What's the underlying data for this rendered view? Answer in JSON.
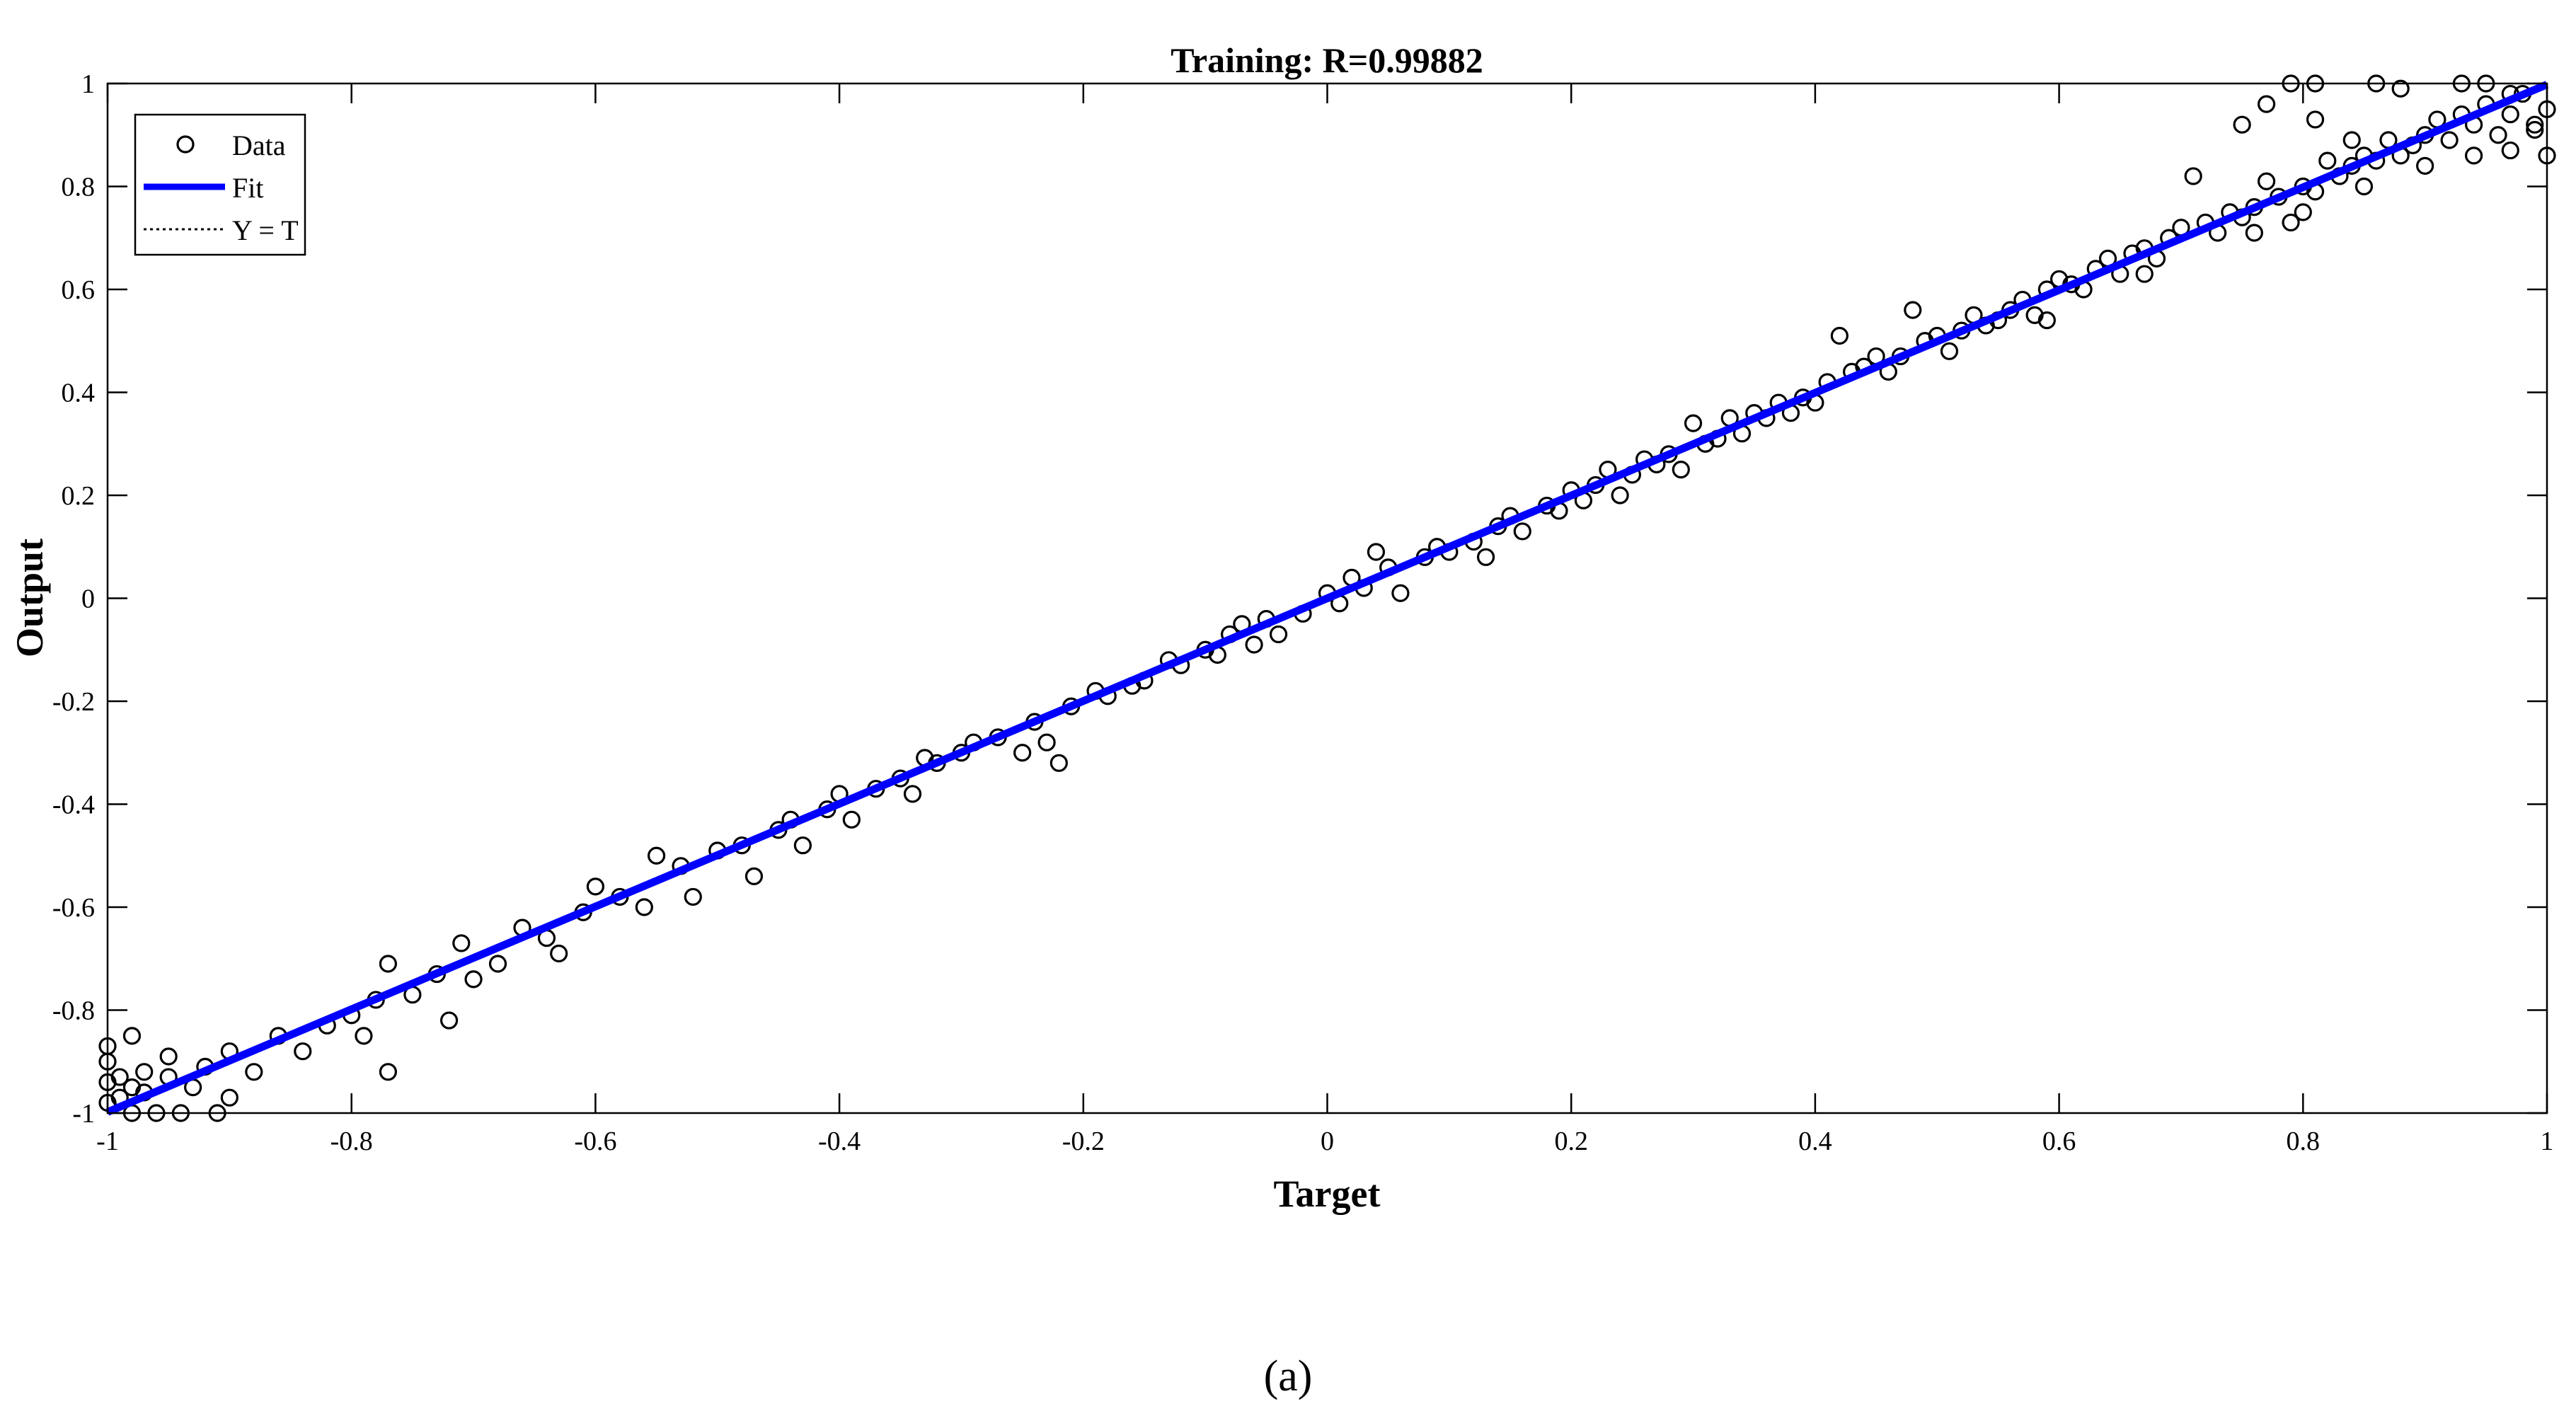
{
  "chart_data": {
    "type": "scatter",
    "title": "Training: R=0.99882",
    "xlabel": "Target",
    "ylabel": "Output",
    "xlim": [
      -1,
      1
    ],
    "ylim": [
      -1,
      1
    ],
    "xticks": [
      "-1",
      "-0.8",
      "-0.6",
      "-0.4",
      "-0.2",
      "0",
      "0.2",
      "0.4",
      "0.6",
      "0.8",
      "1"
    ],
    "yticks": [
      "-1",
      "-0.8",
      "-0.6",
      "-0.4",
      "-0.2",
      "0",
      "0.2",
      "0.4",
      "0.6",
      "0.8",
      "1"
    ],
    "grid": false,
    "legend_position": "top-left",
    "series": [
      {
        "name": "Data",
        "kind": "points",
        "marker": "circle",
        "color": "#000000",
        "points": [
          [
            -1.0,
            -0.98
          ],
          [
            -1.0,
            -0.94
          ],
          [
            -1.0,
            -0.9
          ],
          [
            -1.0,
            -0.87
          ],
          [
            -0.99,
            -0.97
          ],
          [
            -0.99,
            -0.93
          ],
          [
            -0.98,
            -1.0
          ],
          [
            -0.98,
            -0.95
          ],
          [
            -0.98,
            -0.85
          ],
          [
            -0.97,
            -0.96
          ],
          [
            -0.97,
            -0.92
          ],
          [
            -0.96,
            -1.0
          ],
          [
            -0.95,
            -0.93
          ],
          [
            -0.95,
            -0.89
          ],
          [
            -0.94,
            -1.0
          ],
          [
            -0.93,
            -0.95
          ],
          [
            -0.92,
            -0.91
          ],
          [
            -0.91,
            -1.0
          ],
          [
            -0.9,
            -0.97
          ],
          [
            -0.9,
            -0.88
          ],
          [
            -0.88,
            -0.92
          ],
          [
            -0.86,
            -0.85
          ],
          [
            -0.84,
            -0.88
          ],
          [
            -0.82,
            -0.83
          ],
          [
            -0.8,
            -0.81
          ],
          [
            -0.79,
            -0.85
          ],
          [
            -0.78,
            -0.78
          ],
          [
            -0.77,
            -0.92
          ],
          [
            -0.77,
            -0.71
          ],
          [
            -0.75,
            -0.77
          ],
          [
            -0.73,
            -0.73
          ],
          [
            -0.72,
            -0.82
          ],
          [
            -0.71,
            -0.67
          ],
          [
            -0.7,
            -0.74
          ],
          [
            -0.68,
            -0.71
          ],
          [
            -0.66,
            -0.64
          ],
          [
            -0.64,
            -0.66
          ],
          [
            -0.63,
            -0.69
          ],
          [
            -0.61,
            -0.61
          ],
          [
            -0.6,
            -0.56
          ],
          [
            -0.58,
            -0.58
          ],
          [
            -0.56,
            -0.6
          ],
          [
            -0.55,
            -0.5
          ],
          [
            -0.53,
            -0.52
          ],
          [
            -0.52,
            -0.58
          ],
          [
            -0.5,
            -0.49
          ],
          [
            -0.48,
            -0.48
          ],
          [
            -0.47,
            -0.54
          ],
          [
            -0.45,
            -0.45
          ],
          [
            -0.44,
            -0.43
          ],
          [
            -0.43,
            -0.48
          ],
          [
            -0.41,
            -0.41
          ],
          [
            -0.4,
            -0.38
          ],
          [
            -0.39,
            -0.43
          ],
          [
            -0.37,
            -0.37
          ],
          [
            -0.35,
            -0.35
          ],
          [
            -0.34,
            -0.38
          ],
          [
            -0.33,
            -0.31
          ],
          [
            -0.32,
            -0.32
          ],
          [
            -0.3,
            -0.3
          ],
          [
            -0.29,
            -0.28
          ],
          [
            -0.27,
            -0.27
          ],
          [
            -0.25,
            -0.3
          ],
          [
            -0.24,
            -0.24
          ],
          [
            -0.23,
            -0.28
          ],
          [
            -0.22,
            -0.32
          ],
          [
            -0.21,
            -0.21
          ],
          [
            -0.19,
            -0.18
          ],
          [
            -0.18,
            -0.19
          ],
          [
            -0.16,
            -0.17
          ],
          [
            -0.15,
            -0.16
          ],
          [
            -0.13,
            -0.12
          ],
          [
            -0.12,
            -0.13
          ],
          [
            -0.1,
            -0.1
          ],
          [
            -0.09,
            -0.11
          ],
          [
            -0.08,
            -0.07
          ],
          [
            -0.07,
            -0.05
          ],
          [
            -0.06,
            -0.09
          ],
          [
            -0.05,
            -0.04
          ],
          [
            -0.04,
            -0.07
          ],
          [
            -0.02,
            -0.03
          ],
          [
            0.0,
            0.01
          ],
          [
            0.01,
            -0.01
          ],
          [
            0.02,
            0.04
          ],
          [
            0.03,
            0.02
          ],
          [
            0.04,
            0.09
          ],
          [
            0.05,
            0.06
          ],
          [
            0.06,
            0.01
          ],
          [
            0.08,
            0.08
          ],
          [
            0.09,
            0.1
          ],
          [
            0.1,
            0.09
          ],
          [
            0.12,
            0.11
          ],
          [
            0.13,
            0.08
          ],
          [
            0.14,
            0.14
          ],
          [
            0.15,
            0.16
          ],
          [
            0.16,
            0.13
          ],
          [
            0.18,
            0.18
          ],
          [
            0.19,
            0.17
          ],
          [
            0.2,
            0.21
          ],
          [
            0.21,
            0.19
          ],
          [
            0.22,
            0.22
          ],
          [
            0.23,
            0.25
          ],
          [
            0.24,
            0.2
          ],
          [
            0.25,
            0.24
          ],
          [
            0.26,
            0.27
          ],
          [
            0.27,
            0.26
          ],
          [
            0.28,
            0.28
          ],
          [
            0.29,
            0.25
          ],
          [
            0.3,
            0.34
          ],
          [
            0.31,
            0.3
          ],
          [
            0.32,
            0.31
          ],
          [
            0.33,
            0.35
          ],
          [
            0.34,
            0.32
          ],
          [
            0.35,
            0.36
          ],
          [
            0.36,
            0.35
          ],
          [
            0.37,
            0.38
          ],
          [
            0.38,
            0.36
          ],
          [
            0.39,
            0.39
          ],
          [
            0.4,
            0.38
          ],
          [
            0.41,
            0.42
          ],
          [
            0.42,
            0.51
          ],
          [
            0.43,
            0.44
          ],
          [
            0.44,
            0.45
          ],
          [
            0.45,
            0.47
          ],
          [
            0.46,
            0.44
          ],
          [
            0.47,
            0.47
          ],
          [
            0.48,
            0.56
          ],
          [
            0.49,
            0.5
          ],
          [
            0.5,
            0.51
          ],
          [
            0.51,
            0.48
          ],
          [
            0.52,
            0.52
          ],
          [
            0.53,
            0.55
          ],
          [
            0.54,
            0.53
          ],
          [
            0.55,
            0.54
          ],
          [
            0.56,
            0.56
          ],
          [
            0.57,
            0.58
          ],
          [
            0.58,
            0.55
          ],
          [
            0.59,
            0.6
          ],
          [
            0.6,
            0.62
          ],
          [
            0.61,
            0.61
          ],
          [
            0.62,
            0.6
          ],
          [
            0.63,
            0.64
          ],
          [
            0.64,
            0.66
          ],
          [
            0.65,
            0.63
          ],
          [
            0.66,
            0.67
          ],
          [
            0.67,
            0.68
          ],
          [
            0.68,
            0.66
          ],
          [
            0.69,
            0.7
          ],
          [
            0.7,
            0.72
          ],
          [
            0.71,
            0.82
          ],
          [
            0.72,
            0.73
          ],
          [
            0.73,
            0.71
          ],
          [
            0.74,
            0.75
          ],
          [
            0.75,
            0.74
          ],
          [
            0.76,
            0.76
          ],
          [
            0.77,
            0.81
          ],
          [
            0.78,
            0.78
          ],
          [
            0.79,
            0.73
          ],
          [
            0.8,
            0.8
          ],
          [
            0.81,
            0.79
          ],
          [
            0.82,
            0.85
          ],
          [
            0.83,
            0.82
          ],
          [
            0.84,
            0.84
          ],
          [
            0.85,
            0.86
          ],
          [
            0.86,
            0.85
          ],
          [
            0.87,
            0.89
          ],
          [
            0.88,
            0.86
          ],
          [
            0.89,
            0.88
          ],
          [
            0.9,
            0.9
          ],
          [
            0.91,
            0.93
          ],
          [
            0.92,
            0.89
          ],
          [
            0.93,
            0.94
          ],
          [
            0.94,
            0.92
          ],
          [
            0.95,
            0.96
          ],
          [
            0.96,
            0.9
          ],
          [
            0.97,
            0.94
          ],
          [
            0.98,
            0.98
          ],
          [
            0.99,
            0.92
          ],
          [
            1.0,
            0.95
          ],
          [
            1.0,
            0.86
          ],
          [
            0.75,
            0.92
          ],
          [
            0.77,
            0.96
          ],
          [
            0.79,
            1.0
          ],
          [
            0.81,
            1.0
          ],
          [
            0.81,
            0.93
          ],
          [
            0.84,
            0.89
          ],
          [
            0.86,
            1.0
          ],
          [
            0.88,
            0.99
          ],
          [
            0.93,
            1.0
          ],
          [
            0.95,
            1.0
          ],
          [
            0.97,
            0.98
          ],
          [
            0.99,
            0.91
          ],
          [
            0.94,
            0.86
          ],
          [
            0.97,
            0.87
          ],
          [
            0.9,
            0.84
          ],
          [
            0.85,
            0.8
          ],
          [
            0.8,
            0.75
          ],
          [
            0.76,
            0.71
          ],
          [
            0.67,
            0.63
          ],
          [
            0.59,
            0.54
          ]
        ]
      },
      {
        "name": "Fit",
        "kind": "line",
        "color": "#0000ff",
        "x": [
          -1,
          1
        ],
        "y": [
          -0.998,
          0.998
        ]
      },
      {
        "name": "Y = T",
        "kind": "line",
        "style": "dotted",
        "color": "#000000",
        "x": [
          -1,
          1
        ],
        "y": [
          -1,
          1
        ]
      }
    ]
  },
  "caption": "(a)"
}
